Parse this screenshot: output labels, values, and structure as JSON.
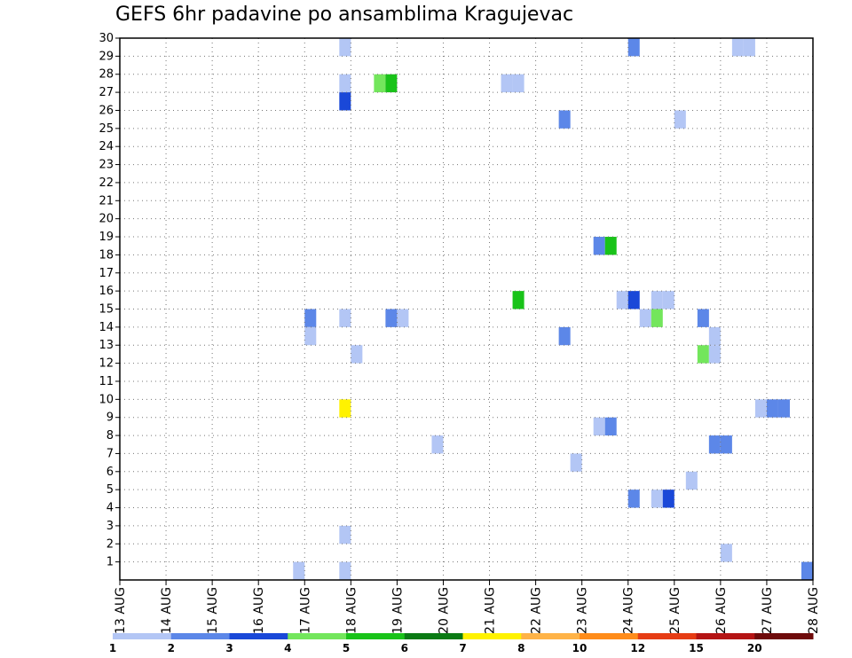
{
  "title": "GEFS 6hr padavine po ansamblima Kragujevac",
  "chart_data": {
    "type": "heatmap",
    "title": "GEFS 6hr padavine po ansamblima Kragujevac",
    "y_ticks": [
      "1",
      "2",
      "3",
      "4",
      "5",
      "6",
      "7",
      "8",
      "9",
      "10",
      "11",
      "12",
      "13",
      "14",
      "15",
      "16",
      "17",
      "18",
      "19",
      "20",
      "21",
      "22",
      "23",
      "24",
      "25",
      "26",
      "27",
      "28",
      "29",
      "30"
    ],
    "x_ticks": [
      "13 AUG",
      "14 AUG",
      "15 AUG",
      "16 AUG",
      "17 AUG",
      "18 AUG",
      "19 AUG",
      "20 AUG",
      "21 AUG",
      "22 AUG",
      "23 AUG",
      "24 AUG",
      "25 AUG",
      "26 AUG",
      "27 AUG",
      "28 AUG"
    ],
    "x_range_days": [
      13,
      28
    ],
    "y_range": [
      0,
      30
    ],
    "grid": true,
    "colorbar": {
      "labels": [
        "1",
        "2",
        "3",
        "4",
        "5",
        "6",
        "7",
        "8",
        "10",
        "12",
        "15",
        "20"
      ],
      "colors": [
        "#b3c6f5",
        "#5c87e8",
        "#1a48d8",
        "#73e65c",
        "#19c319",
        "#0a7a14",
        "#fff200",
        "#ffb347",
        "#ff8c1a",
        "#e63c14",
        "#b41414",
        "#6e0a0a"
      ]
    },
    "cells": [
      {
        "day": 17.75,
        "member": 30,
        "color": "#b3c6f5"
      },
      {
        "day": 24.0,
        "member": 30,
        "color": "#5c87e8"
      },
      {
        "day": 26.25,
        "member": 30,
        "color": "#b3c6f5"
      },
      {
        "day": 26.5,
        "member": 30,
        "color": "#b3c6f5"
      },
      {
        "day": 17.75,
        "member": 28,
        "color": "#b3c6f5"
      },
      {
        "day": 18.5,
        "member": 28,
        "color": "#73e65c"
      },
      {
        "day": 18.75,
        "member": 28,
        "color": "#19c319"
      },
      {
        "day": 21.25,
        "member": 28,
        "color": "#b3c6f5"
      },
      {
        "day": 21.5,
        "member": 28,
        "color": "#b3c6f5"
      },
      {
        "day": 17.75,
        "member": 27,
        "color": "#1a48d8"
      },
      {
        "day": 22.5,
        "member": 26,
        "color": "#5c87e8"
      },
      {
        "day": 25.0,
        "member": 26,
        "color": "#b3c6f5"
      },
      {
        "day": 23.25,
        "member": 19,
        "color": "#5c87e8"
      },
      {
        "day": 23.5,
        "member": 19,
        "color": "#19c319"
      },
      {
        "day": 21.5,
        "member": 16,
        "color": "#19c319"
      },
      {
        "day": 23.75,
        "member": 16,
        "color": "#b3c6f5"
      },
      {
        "day": 24.0,
        "member": 16,
        "color": "#1a48d8"
      },
      {
        "day": 24.5,
        "member": 16,
        "color": "#b3c6f5"
      },
      {
        "day": 24.75,
        "member": 16,
        "color": "#b3c6f5"
      },
      {
        "day": 17.0,
        "member": 15,
        "color": "#5c87e8"
      },
      {
        "day": 17.75,
        "member": 15,
        "color": "#b3c6f5"
      },
      {
        "day": 18.75,
        "member": 15,
        "color": "#5c87e8"
      },
      {
        "day": 19.0,
        "member": 15,
        "color": "#b3c6f5"
      },
      {
        "day": 24.25,
        "member": 15,
        "color": "#b3c6f5"
      },
      {
        "day": 24.5,
        "member": 15,
        "color": "#73e65c"
      },
      {
        "day": 25.5,
        "member": 15,
        "color": "#5c87e8"
      },
      {
        "day": 17.0,
        "member": 14,
        "color": "#b3c6f5"
      },
      {
        "day": 22.5,
        "member": 14,
        "color": "#5c87e8"
      },
      {
        "day": 25.75,
        "member": 14,
        "color": "#b3c6f5"
      },
      {
        "day": 18.0,
        "member": 13,
        "color": "#b3c6f5"
      },
      {
        "day": 25.5,
        "member": 13,
        "color": "#73e65c"
      },
      {
        "day": 25.75,
        "member": 13,
        "color": "#b3c6f5"
      },
      {
        "day": 17.75,
        "member": 10,
        "color": "#fff200"
      },
      {
        "day": 26.75,
        "member": 10,
        "color": "#b3c6f5"
      },
      {
        "day": 27.0,
        "member": 10,
        "color": "#5c87e8"
      },
      {
        "day": 27.25,
        "member": 10,
        "color": "#5c87e8"
      },
      {
        "day": 23.25,
        "member": 9,
        "color": "#b3c6f5"
      },
      {
        "day": 23.5,
        "member": 9,
        "color": "#5c87e8"
      },
      {
        "day": 19.75,
        "member": 8,
        "color": "#b3c6f5"
      },
      {
        "day": 25.75,
        "member": 8,
        "color": "#5c87e8"
      },
      {
        "day": 26.0,
        "member": 8,
        "color": "#5c87e8"
      },
      {
        "day": 22.75,
        "member": 7,
        "color": "#b3c6f5"
      },
      {
        "day": 25.25,
        "member": 6,
        "color": "#b3c6f5"
      },
      {
        "day": 24.0,
        "member": 5,
        "color": "#5c87e8"
      },
      {
        "day": 24.5,
        "member": 5,
        "color": "#b3c6f5"
      },
      {
        "day": 24.75,
        "member": 5,
        "color": "#1a48d8"
      },
      {
        "day": 17.75,
        "member": 3,
        "color": "#b3c6f5"
      },
      {
        "day": 26.0,
        "member": 2,
        "color": "#b3c6f5"
      },
      {
        "day": 16.75,
        "member": 1,
        "color": "#b3c6f5"
      },
      {
        "day": 17.75,
        "member": 1,
        "color": "#b3c6f5"
      },
      {
        "day": 27.75,
        "member": 1,
        "color": "#5c87e8"
      }
    ]
  }
}
